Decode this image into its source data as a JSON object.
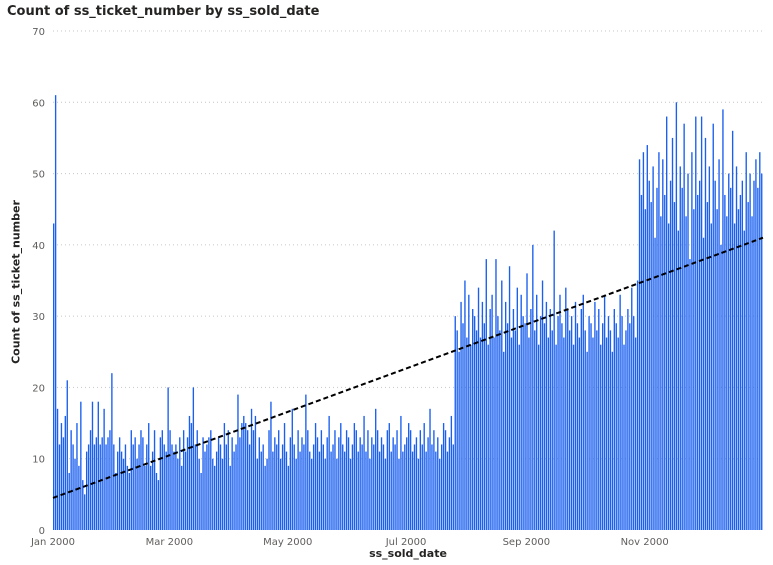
{
  "chart_data": {
    "type": "bar",
    "title": "Count of ss_ticket_number by ss_sold_date",
    "xlabel": "ss_sold_date",
    "ylabel": "Count of ss_ticket_number",
    "ylim": [
      0,
      70
    ],
    "yticks": [
      "0",
      "10",
      "20",
      "30",
      "40",
      "50",
      "60",
      "70"
    ],
    "x_start": "2000-01-01",
    "x_end": "2000-12-31",
    "xticks": [
      {
        "label": "Jan 2000",
        "date": "2000-01-01"
      },
      {
        "label": "Mar 2000",
        "date": "2000-03-01"
      },
      {
        "label": "May 2000",
        "date": "2000-05-01"
      },
      {
        "label": "Jul 2000",
        "date": "2000-07-01"
      },
      {
        "label": "Sep 2000",
        "date": "2000-09-01"
      },
      {
        "label": "Nov 2000",
        "date": "2000-11-01"
      }
    ],
    "grid": true,
    "bar_color": "#1a5ff0",
    "trendline": {
      "style": "dashed",
      "color": "#000000",
      "start": [
        "2000-01-01",
        4.5
      ],
      "end": [
        "2000-12-31",
        41
      ]
    },
    "series": [
      {
        "values": [
          43,
          61,
          17,
          12,
          15,
          13,
          16,
          21,
          8,
          14,
          12,
          10,
          15,
          9,
          18,
          7,
          5,
          11,
          12,
          14,
          18,
          12,
          13,
          18,
          12,
          13,
          17,
          12,
          13,
          14,
          22,
          12,
          8,
          11,
          13,
          11,
          10,
          12,
          9,
          8,
          14,
          12,
          13,
          10,
          12,
          14,
          13,
          9,
          12,
          15,
          9,
          11,
          14,
          8,
          7,
          13,
          14,
          12,
          11,
          20,
          14,
          12,
          11,
          12,
          10,
          13,
          9,
          14,
          11,
          13,
          16,
          15,
          20,
          12,
          14,
          10,
          8,
          13,
          11,
          12,
          13,
          14,
          10,
          9,
          11,
          13,
          12,
          10,
          15,
          12,
          14,
          9,
          13,
          11,
          12,
          19,
          13,
          15,
          16,
          15,
          14,
          12,
          17,
          14,
          16,
          10,
          13,
          11,
          12,
          9,
          10,
          14,
          18,
          11,
          13,
          12,
          14,
          10,
          12,
          15,
          11,
          9,
          13,
          17,
          12,
          10,
          14,
          11,
          13,
          12,
          19,
          14,
          11,
          10,
          12,
          15,
          13,
          11,
          14,
          12,
          10,
          13,
          16,
          11,
          12,
          14,
          10,
          13,
          15,
          12,
          11,
          14,
          13,
          10,
          12,
          15,
          14,
          11,
          13,
          12,
          16,
          11,
          14,
          10,
          13,
          12,
          17,
          14,
          11,
          13,
          12,
          10,
          14,
          15,
          11,
          13,
          12,
          14,
          10,
          16,
          11,
          12,
          13,
          15,
          14,
          11,
          12,
          13,
          10,
          14,
          12,
          15,
          11,
          13,
          17,
          12,
          14,
          11,
          13,
          10,
          12,
          15,
          14,
          11,
          13,
          16,
          12,
          30,
          28,
          25,
          32,
          29,
          35,
          27,
          33,
          26,
          31,
          30,
          28,
          34,
          27,
          32,
          29,
          38,
          26,
          31,
          33,
          27,
          38,
          30,
          28,
          35,
          25,
          32,
          29,
          37,
          27,
          31,
          28,
          34,
          26,
          33,
          30,
          29,
          36,
          27,
          31,
          40,
          28,
          33,
          26,
          30,
          35,
          29,
          32,
          27,
          31,
          28,
          42,
          26,
          30,
          33,
          29,
          27,
          34,
          31,
          28,
          30,
          26,
          32,
          29,
          27,
          31,
          33,
          28,
          25,
          30,
          29,
          27,
          32,
          28,
          31,
          26,
          29,
          33,
          27,
          30,
          28,
          25,
          31,
          29,
          27,
          33,
          30,
          26,
          28,
          31,
          29,
          34,
          30,
          27,
          35,
          52,
          47,
          53,
          45,
          54,
          49,
          46,
          51,
          41,
          48,
          53,
          44,
          52,
          47,
          58,
          43,
          49,
          55,
          46,
          60,
          42,
          51,
          48,
          57,
          44,
          50,
          38,
          53,
          45,
          58,
          47,
          49,
          58,
          41,
          55,
          46,
          51,
          43,
          57,
          49,
          45,
          52,
          40,
          59,
          47,
          44,
          50,
          48,
          56,
          43,
          51,
          45,
          47,
          49,
          42,
          53,
          46,
          50,
          44,
          49,
          52,
          48,
          53,
          50
        ]
      }
    ]
  }
}
